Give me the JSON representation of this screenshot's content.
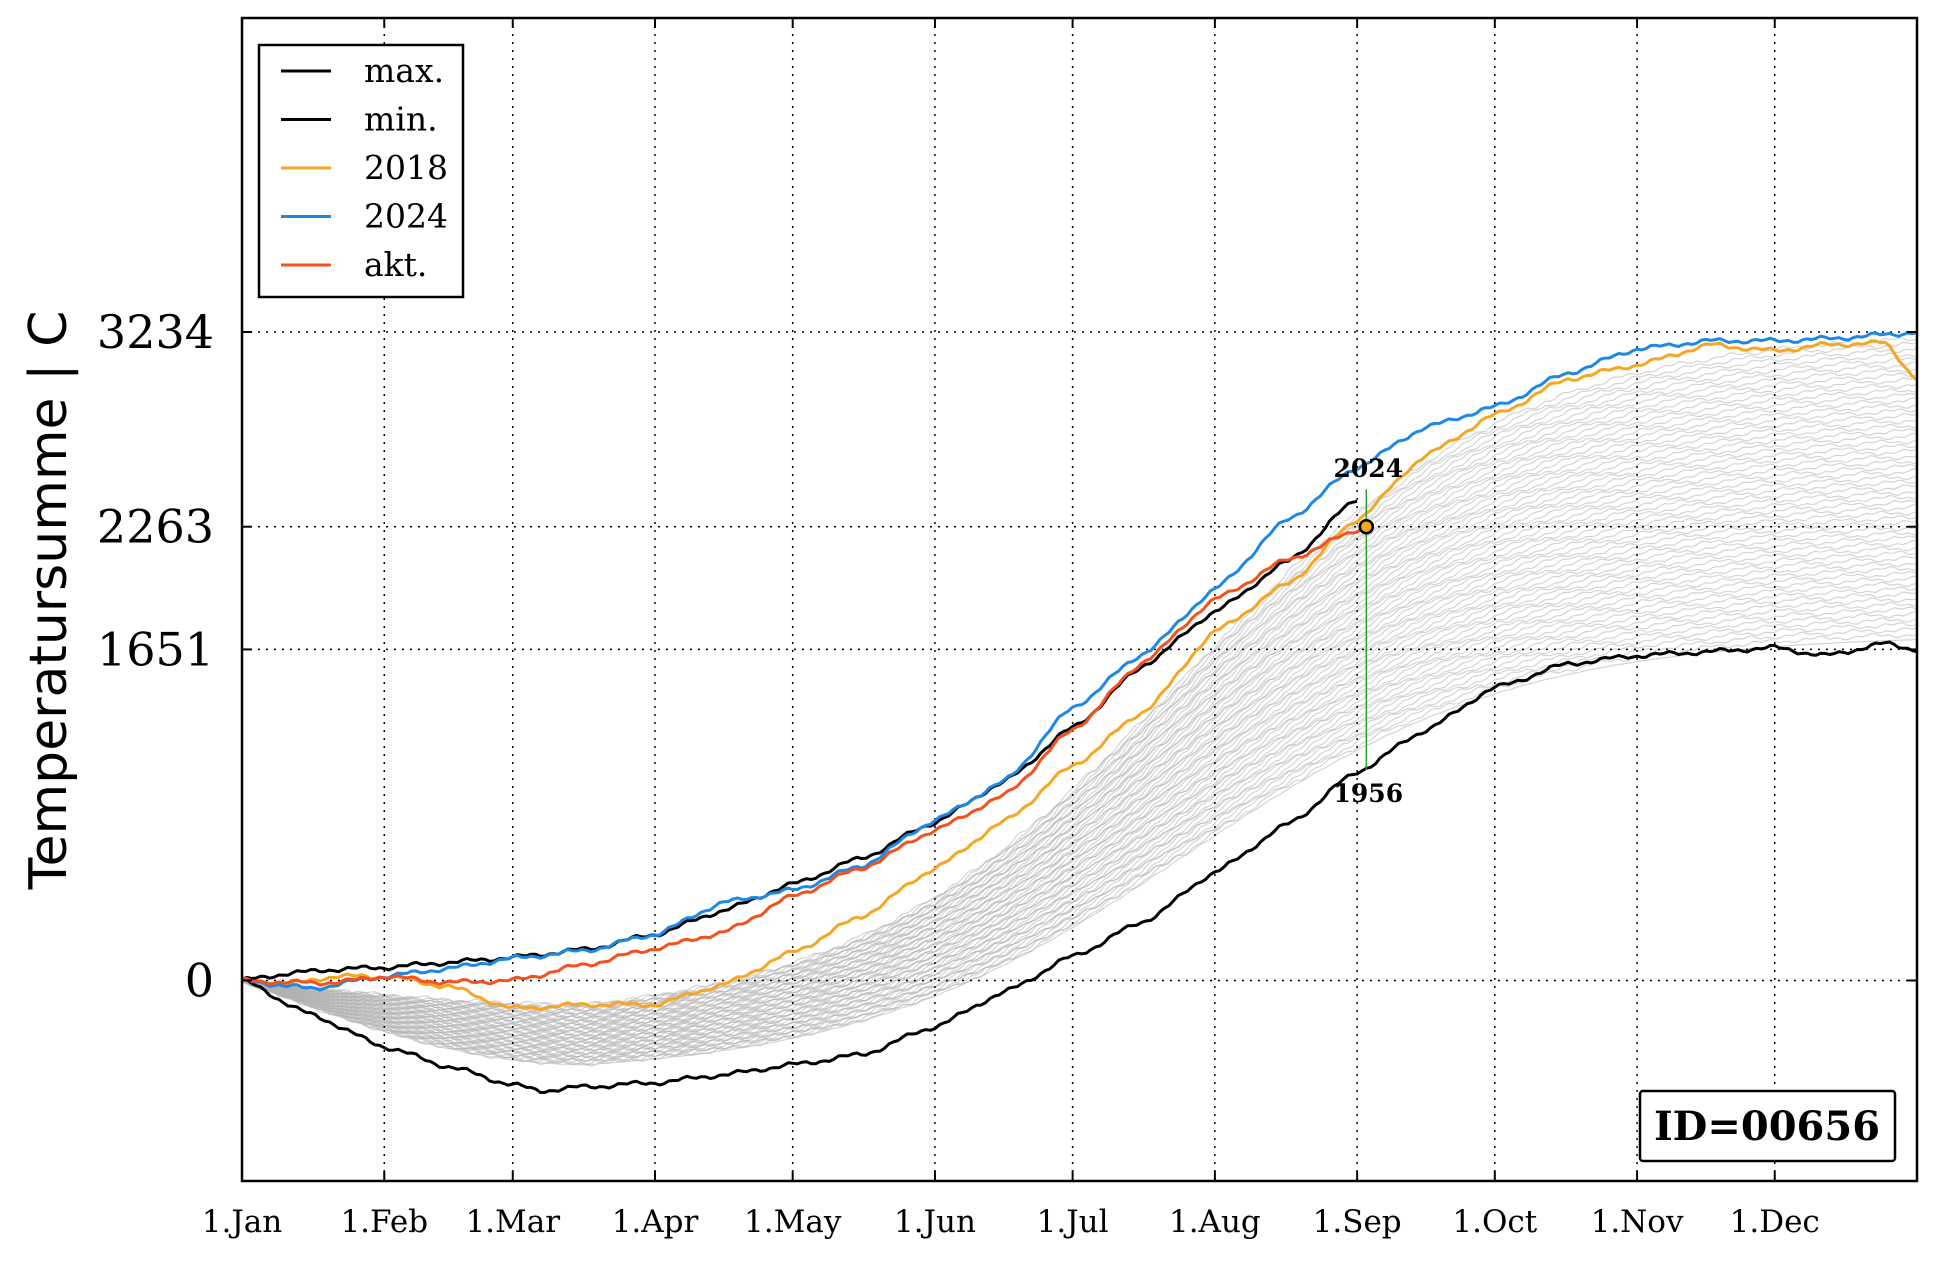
{
  "chart_data": {
    "type": "line",
    "ylabel": "Temperatursumme | C",
    "xlabel": "",
    "xlim": [
      0,
      365
    ],
    "ylim": [
      -1000,
      4800
    ],
    "x_ticks": [
      {
        "day": 0,
        "label": "1.Jan"
      },
      {
        "day": 31,
        "label": "1.Feb"
      },
      {
        "day": 59,
        "label": "1.Mar"
      },
      {
        "day": 90,
        "label": "1.Apr"
      },
      {
        "day": 120,
        "label": "1.May"
      },
      {
        "day": 151,
        "label": "1.Jun"
      },
      {
        "day": 181,
        "label": "1.Jul"
      },
      {
        "day": 212,
        "label": "1.Aug"
      },
      {
        "day": 243,
        "label": "1.Sep"
      },
      {
        "day": 273,
        "label": "1.Oct"
      },
      {
        "day": 304,
        "label": "1.Nov"
      },
      {
        "day": 334,
        "label": "1.Dec"
      }
    ],
    "y_ticks": [
      {
        "value": 0,
        "label": "0"
      },
      {
        "value": 1651,
        "label": "1651"
      },
      {
        "value": 2263,
        "label": "2263"
      },
      {
        "value": 3234,
        "label": "3234"
      }
    ],
    "grid": true,
    "legend_position": "top-left",
    "series": [
      {
        "name": "max.",
        "color": "#000000",
        "points": [
          [
            0,
            0
          ],
          [
            10,
            35
          ],
          [
            20,
            55
          ],
          [
            31,
            65
          ],
          [
            45,
            90
          ],
          [
            59,
            115
          ],
          [
            75,
            155
          ],
          [
            90,
            230
          ],
          [
            105,
            350
          ],
          [
            120,
            480
          ],
          [
            135,
            610
          ],
          [
            151,
            790
          ],
          [
            166,
            990
          ],
          [
            181,
            1260
          ],
          [
            197,
            1580
          ],
          [
            212,
            1840
          ],
          [
            228,
            2090
          ],
          [
            243,
            2400
          ]
        ]
      },
      {
        "name": "min.",
        "color": "#000000",
        "points": [
          [
            0,
            0
          ],
          [
            15,
            -170
          ],
          [
            31,
            -330
          ],
          [
            45,
            -430
          ],
          [
            59,
            -520
          ],
          [
            65,
            -550
          ],
          [
            75,
            -530
          ],
          [
            90,
            -510
          ],
          [
            105,
            -470
          ],
          [
            120,
            -420
          ],
          [
            135,
            -370
          ],
          [
            151,
            -230
          ],
          [
            166,
            -60
          ],
          [
            181,
            120
          ],
          [
            197,
            300
          ],
          [
            212,
            540
          ],
          [
            228,
            780
          ],
          [
            243,
            1040
          ],
          [
            258,
            1250
          ],
          [
            273,
            1460
          ],
          [
            289,
            1580
          ],
          [
            304,
            1620
          ],
          [
            320,
            1640
          ],
          [
            334,
            1660
          ],
          [
            345,
            1620
          ],
          [
            358,
            1680
          ],
          [
            365,
            1651
          ]
        ]
      },
      {
        "name": "2018",
        "color": "#f5a623",
        "points": [
          [
            0,
            0
          ],
          [
            10,
            -20
          ],
          [
            20,
            20
          ],
          [
            31,
            20
          ],
          [
            45,
            -30
          ],
          [
            59,
            -140
          ],
          [
            75,
            -120
          ],
          [
            90,
            -120
          ],
          [
            105,
            -20
          ],
          [
            120,
            140
          ],
          [
            135,
            320
          ],
          [
            151,
            560
          ],
          [
            166,
            790
          ],
          [
            181,
            1070
          ],
          [
            197,
            1350
          ],
          [
            212,
            1740
          ],
          [
            228,
            1980
          ],
          [
            243,
            2300
          ],
          [
            258,
            2620
          ],
          [
            273,
            2820
          ],
          [
            289,
            3000
          ],
          [
            304,
            3070
          ],
          [
            320,
            3170
          ],
          [
            334,
            3140
          ],
          [
            345,
            3170
          ],
          [
            358,
            3180
          ],
          [
            365,
            3000
          ]
        ]
      },
      {
        "name": "2024",
        "color": "#1e88e5",
        "points": [
          [
            0,
            0
          ],
          [
            15,
            -40
          ],
          [
            31,
            20
          ],
          [
            45,
            60
          ],
          [
            59,
            110
          ],
          [
            75,
            150
          ],
          [
            90,
            230
          ],
          [
            105,
            390
          ],
          [
            120,
            450
          ],
          [
            135,
            570
          ],
          [
            151,
            800
          ],
          [
            166,
            990
          ],
          [
            181,
            1360
          ],
          [
            197,
            1640
          ],
          [
            212,
            1950
          ],
          [
            228,
            2300
          ],
          [
            243,
            2560
          ],
          [
            258,
            2760
          ],
          [
            273,
            2860
          ],
          [
            289,
            3030
          ],
          [
            304,
            3150
          ],
          [
            320,
            3190
          ],
          [
            334,
            3190
          ],
          [
            345,
            3200
          ],
          [
            358,
            3220
          ],
          [
            365,
            3234
          ]
        ]
      },
      {
        "name": "akt.",
        "color": "#f4511e",
        "points": [
          [
            0,
            0
          ],
          [
            10,
            -10
          ],
          [
            20,
            -10
          ],
          [
            31,
            20
          ],
          [
            45,
            -10
          ],
          [
            59,
            0
          ],
          [
            75,
            80
          ],
          [
            90,
            160
          ],
          [
            105,
            240
          ],
          [
            120,
            420
          ],
          [
            135,
            560
          ],
          [
            151,
            750
          ],
          [
            166,
            920
          ],
          [
            181,
            1250
          ],
          [
            197,
            1600
          ],
          [
            212,
            1900
          ],
          [
            228,
            2100
          ],
          [
            245,
            2263
          ]
        ]
      }
    ],
    "background_series_count": 60,
    "background_series_color": "#b0b0b0",
    "annotations": {
      "marker": {
        "day": 245,
        "value": 2263
      },
      "top_label": "2024",
      "bottom_label": "1956",
      "vline_color": "#2e9e2e",
      "vline_range": [
        1050,
        2450
      ]
    },
    "id_box_label": "ID=00656"
  }
}
